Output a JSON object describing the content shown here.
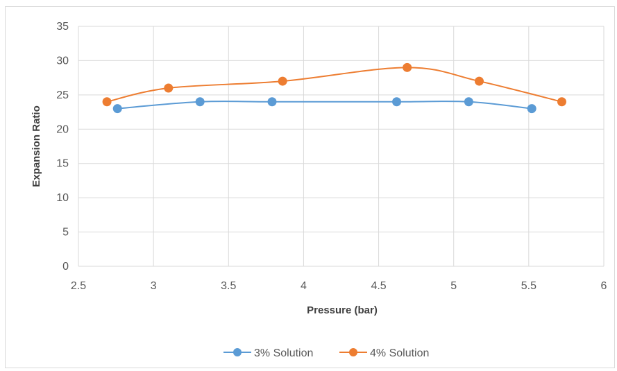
{
  "chart_data": {
    "type": "line",
    "smooth": true,
    "xlabel": "Pressure (bar)",
    "ylabel": "Expansion Ratio",
    "xlim": [
      2.5,
      6
    ],
    "ylim": [
      0,
      35
    ],
    "x_ticks": [
      "2.5",
      "3",
      "3.5",
      "4",
      "4.5",
      "5",
      "5.5",
      "6"
    ],
    "y_ticks": [
      "0",
      "5",
      "10",
      "15",
      "20",
      "25",
      "30",
      "35"
    ],
    "grid": "vertical and horizontal major gridlines",
    "legend_position": "bottom",
    "series": [
      {
        "name": "3% Solution",
        "color": "#5B9BD5",
        "points": [
          {
            "x": 2.76,
            "y": 23
          },
          {
            "x": 3.31,
            "y": 24
          },
          {
            "x": 3.79,
            "y": 24
          },
          {
            "x": 4.62,
            "y": 24
          },
          {
            "x": 5.1,
            "y": 24
          },
          {
            "x": 5.52,
            "y": 23
          }
        ]
      },
      {
        "name": "4% Solution",
        "color": "#ED7D31",
        "points": [
          {
            "x": 2.69,
            "y": 24
          },
          {
            "x": 3.1,
            "y": 26
          },
          {
            "x": 3.86,
            "y": 27
          },
          {
            "x": 4.69,
            "y": 29
          },
          {
            "x": 5.17,
            "y": 27
          },
          {
            "x": 5.72,
            "y": 24
          }
        ]
      }
    ]
  }
}
